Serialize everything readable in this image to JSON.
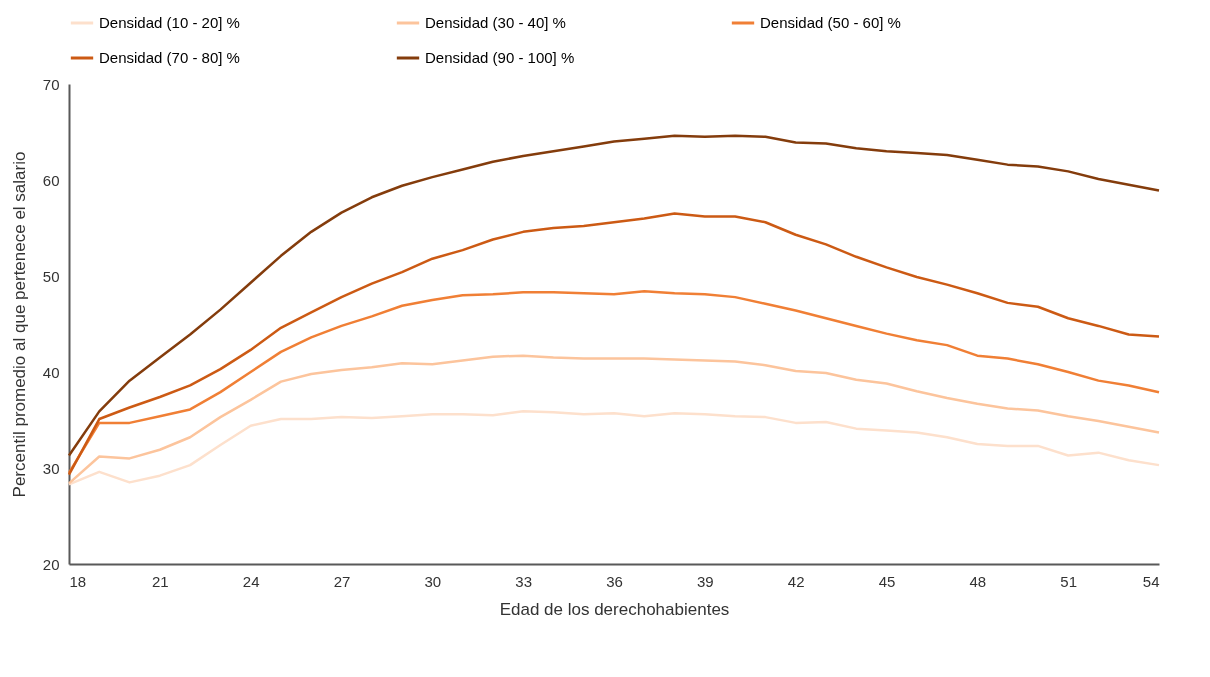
{
  "chart_data": {
    "type": "line",
    "xlabel": "Edad de los derechohabientes",
    "ylabel": "Percentil promedio al que pertenece el salario",
    "x": [
      18,
      19,
      20,
      21,
      22,
      23,
      24,
      25,
      26,
      27,
      28,
      29,
      30,
      31,
      32,
      33,
      34,
      35,
      36,
      37,
      38,
      39,
      40,
      41,
      42,
      43,
      44,
      45,
      46,
      47,
      48,
      49,
      50,
      51,
      52,
      53,
      54
    ],
    "series": [
      {
        "name": "Densidad (10 - 20] %",
        "color": "#fde0cc",
        "values": [
          28.3,
          29.6,
          28.5,
          29.2,
          30.3,
          32.4,
          34.4,
          35.1,
          35.1,
          35.3,
          35.2,
          35.4,
          35.6,
          35.6,
          35.5,
          35.9,
          35.8,
          35.6,
          35.7,
          35.4,
          35.7,
          35.6,
          35.4,
          35.3,
          34.7,
          34.8,
          34.1,
          33.9,
          33.7,
          33.2,
          32.5,
          32.3,
          32.3,
          31.3,
          31.6,
          30.8,
          30.3
        ]
      },
      {
        "name": "Densidad (30 - 40] %",
        "color": "#fcc49c",
        "values": [
          28.4,
          31.2,
          31.0,
          31.9,
          33.2,
          35.3,
          37.1,
          39.0,
          39.8,
          40.2,
          40.5,
          40.9,
          40.8,
          41.2,
          41.6,
          41.7,
          41.5,
          41.4,
          41.4,
          41.4,
          41.3,
          41.2,
          41.1,
          40.7,
          40.1,
          39.9,
          39.2,
          38.8,
          38.0,
          37.3,
          36.7,
          36.2,
          36.0,
          35.4,
          34.9,
          34.3,
          33.7
        ]
      },
      {
        "name": "Densidad (50 - 60] %",
        "color": "#f07f35",
        "values": [
          29.5,
          34.7,
          34.7,
          35.4,
          36.1,
          37.9,
          40.0,
          42.1,
          43.6,
          44.8,
          45.8,
          46.9,
          47.5,
          48.0,
          48.1,
          48.3,
          48.3,
          48.2,
          48.1,
          48.4,
          48.2,
          48.1,
          47.8,
          47.1,
          46.4,
          45.6,
          44.8,
          44.0,
          43.3,
          42.8,
          41.7,
          41.4,
          40.8,
          40.0,
          39.1,
          38.6,
          37.9
        ]
      },
      {
        "name": "Densidad (70 - 80] %",
        "color": "#cc5a14",
        "values": [
          29.3,
          35.1,
          36.3,
          37.4,
          38.6,
          40.3,
          42.3,
          44.6,
          46.2,
          47.8,
          49.2,
          50.4,
          51.8,
          52.7,
          53.8,
          54.6,
          55.0,
          55.2,
          55.6,
          56.0,
          56.5,
          56.2,
          56.2,
          55.6,
          54.3,
          53.3,
          52.0,
          50.9,
          49.9,
          49.1,
          48.2,
          47.2,
          46.8,
          45.6,
          44.8,
          43.9,
          43.7
        ]
      },
      {
        "name": "Densidad (90 - 100] %",
        "color": "#843c0c",
        "values": [
          31.3,
          35.9,
          39.1,
          41.5,
          43.9,
          46.5,
          49.3,
          52.1,
          54.6,
          56.6,
          58.2,
          59.4,
          60.3,
          61.1,
          61.9,
          62.5,
          63.0,
          63.5,
          64.0,
          64.3,
          64.6,
          64.5,
          64.6,
          64.5,
          63.9,
          63.8,
          63.3,
          63.0,
          62.8,
          62.6,
          62.1,
          61.6,
          61.4,
          60.9,
          60.1,
          59.5,
          58.9
        ]
      }
    ],
    "xlim": [
      18,
      54
    ],
    "xticks": [
      18,
      21,
      24,
      27,
      30,
      33,
      36,
      39,
      42,
      45,
      48,
      51,
      54
    ],
    "ylim": [
      20,
      70
    ],
    "yticks": [
      20,
      30,
      40,
      50,
      60,
      70
    ],
    "grid": false,
    "legend": "top",
    "marker": "none",
    "line_style": "solid"
  }
}
